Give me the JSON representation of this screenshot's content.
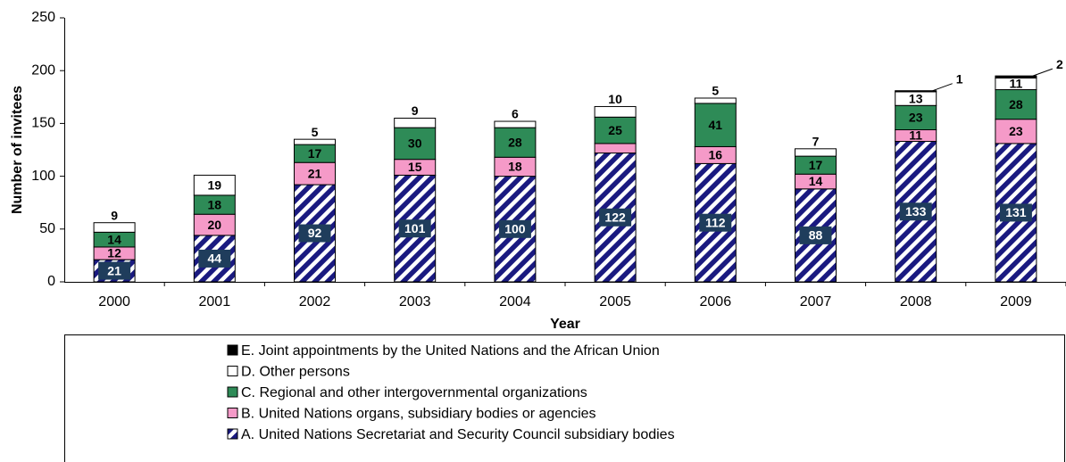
{
  "chart_data": {
    "type": "stacked_bar",
    "x_label": "Year",
    "y_label": "Number of invitees",
    "categories": [
      "2000",
      "2001",
      "2002",
      "2003",
      "2004",
      "2005",
      "2006",
      "2007",
      "2008",
      "2009"
    ],
    "series": [
      {
        "name": "A. United Nations Secretariat and Security Council subsidiary bodies",
        "color": "#1a1a80",
        "hatch": true,
        "values": [
          21,
          44,
          92,
          101,
          100,
          122,
          112,
          88,
          133,
          131
        ]
      },
      {
        "name": "B. United Nations organs, subsidiary bodies or agencies",
        "color": "#f59ac8",
        "values": [
          12,
          20,
          21,
          15,
          18,
          9,
          16,
          14,
          11,
          23
        ]
      },
      {
        "name": "C. Regional and other intergovernmental organizations",
        "color": "#2e8b57",
        "values": [
          14,
          18,
          17,
          30,
          28,
          25,
          41,
          17,
          23,
          28
        ]
      },
      {
        "name": "D. Other persons",
        "color": "#ffffff",
        "values": [
          9,
          19,
          5,
          9,
          6,
          10,
          5,
          7,
          13,
          11
        ]
      },
      {
        "name": "E. Joint appointments by the United Nations and the African Union",
        "color": "#000000",
        "values": [
          null,
          null,
          null,
          null,
          null,
          null,
          null,
          null,
          1,
          2
        ]
      }
    ],
    "ylim": [
      0,
      250
    ],
    "yticks": [
      0,
      50,
      100,
      150,
      200,
      250
    ],
    "legend": "bottom"
  }
}
